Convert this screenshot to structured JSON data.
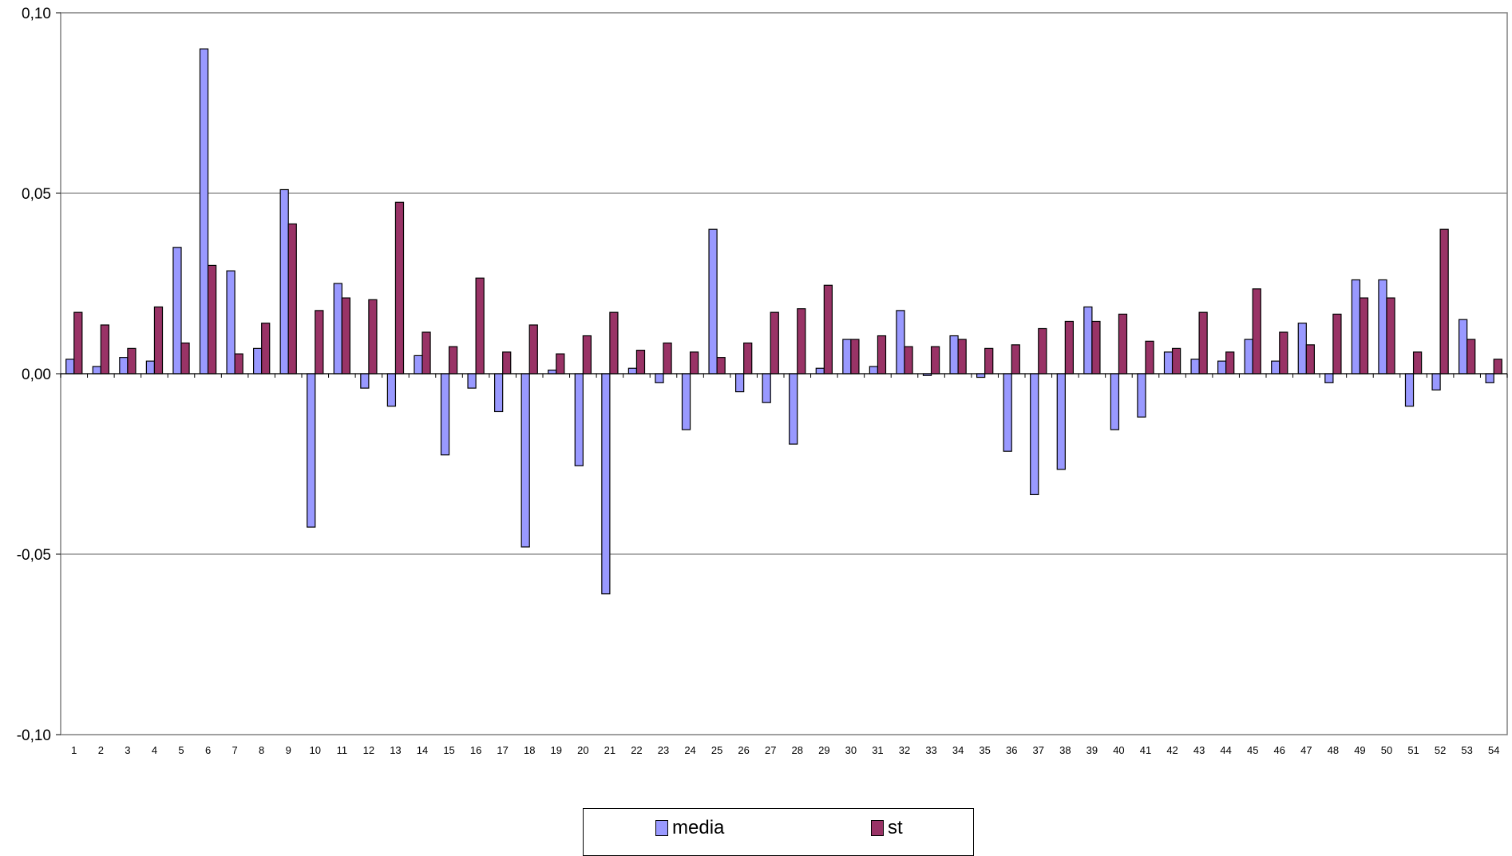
{
  "chart_data": {
    "type": "bar",
    "title": "",
    "xlabel": "",
    "ylabel": "",
    "ylim": [
      -0.1,
      0.1
    ],
    "y_ticks": [
      "0,10",
      "0,05",
      "0,00",
      "-0,05",
      "-0,10"
    ],
    "grid": true,
    "legend_position": "bottom",
    "categories": [
      "1",
      "2",
      "3",
      "4",
      "5",
      "6",
      "7",
      "8",
      "9",
      "10",
      "11",
      "12",
      "13",
      "14",
      "15",
      "16",
      "17",
      "18",
      "19",
      "20",
      "21",
      "22",
      "23",
      "24",
      "25",
      "26",
      "27",
      "28",
      "29",
      "30",
      "31",
      "32",
      "33",
      "34",
      "35",
      "36",
      "37",
      "38",
      "39",
      "40",
      "41",
      "42",
      "43",
      "44",
      "45",
      "46",
      "47",
      "48",
      "49",
      "50",
      "51",
      "52",
      "53",
      "54"
    ],
    "series": [
      {
        "name": "media",
        "color": "#9999ff",
        "values": [
          0.004,
          0.002,
          0.0045,
          0.0035,
          0.035,
          0.09,
          0.0285,
          0.007,
          0.051,
          -0.0425,
          0.025,
          -0.004,
          -0.009,
          0.005,
          -0.0225,
          -0.004,
          -0.0105,
          -0.048,
          0.001,
          -0.0255,
          -0.061,
          0.0015,
          -0.0025,
          -0.0155,
          0.04,
          -0.005,
          -0.008,
          -0.0195,
          0.0015,
          0.0095,
          0.002,
          0.0175,
          -0.0005,
          0.0105,
          -0.001,
          -0.0215,
          -0.0335,
          -0.0265,
          0.0185,
          -0.0155,
          -0.012,
          0.006,
          0.004,
          0.0035,
          0.0095,
          0.0035,
          0.014,
          -0.0025,
          0.026,
          0.026,
          -0.009,
          -0.0045,
          0.015,
          -0.0025
        ]
      },
      {
        "name": "st",
        "color": "#993366",
        "values": [
          0.017,
          0.0135,
          0.007,
          0.0185,
          0.0085,
          0.03,
          0.0055,
          0.014,
          0.0415,
          0.0175,
          0.021,
          0.0205,
          0.0475,
          0.0115,
          0.0075,
          0.0265,
          0.006,
          0.0135,
          0.0055,
          0.0105,
          0.017,
          0.0065,
          0.0085,
          0.006,
          0.0045,
          0.0085,
          0.017,
          0.018,
          0.0245,
          0.0095,
          0.0105,
          0.0075,
          0.0075,
          0.0095,
          0.007,
          0.008,
          0.0125,
          0.0145,
          0.0145,
          0.0165,
          0.009,
          0.007,
          0.017,
          0.006,
          0.0235,
          0.0115,
          0.008,
          0.0165,
          0.021,
          0.021,
          0.006,
          0.04,
          0.0095,
          0.004
        ]
      }
    ]
  }
}
